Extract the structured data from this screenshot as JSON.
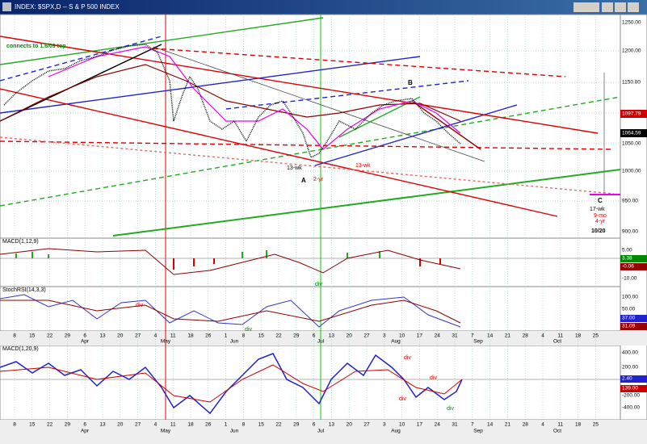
{
  "window_title": "INDEX: $SPX,D -- S & P 500 INDEX",
  "annotations": {
    "note": "connects to 1.6/09 top",
    "b": "B",
    "a": "A",
    "c": "C",
    "wk13_a": "13-wk",
    "yr2": "2-yr",
    "wk13_b": "13-wk",
    "wk17": "17-wk",
    "mo9": "9-mo",
    "yr4": "4-yr",
    "date": "10/20"
  },
  "price_axis": [
    "1250.00",
    "1200.00",
    "1150.00",
    "1050.00",
    "1000.00",
    "950.00",
    "900.00"
  ],
  "price_boxes": [
    "1097.79",
    "1064.59"
  ],
  "panels": [
    {
      "label": "MACD(1,12,9)",
      "axis": [
        "5.00",
        "-10.00"
      ],
      "boxes": [
        "3.38",
        "-0.06"
      ]
    },
    {
      "label": "StochRSI(14,3,3)",
      "axis": [
        "100.00",
        "50.00"
      ],
      "boxes": [
        "37.00",
        "31.09"
      ]
    },
    {
      "label": "MACD(1,20,9)",
      "axis": [
        "400.00",
        "200.00",
        "-200.00",
        "-400.00"
      ],
      "boxes": [
        "2.40",
        "139.00"
      ]
    }
  ],
  "divs": [
    "div",
    "div",
    "div",
    "div",
    "div",
    "div",
    "div"
  ],
  "dates": [
    "8",
    "15",
    "22",
    "29",
    "6",
    "13",
    "20",
    "27",
    "4",
    "11",
    "18",
    "26",
    "1",
    "8",
    "15",
    "22",
    "29",
    "6",
    "13",
    "20",
    "27",
    "3",
    "10",
    "17",
    "24",
    "31",
    "7",
    "14",
    "21",
    "28",
    "4",
    "11",
    "18",
    "25"
  ],
  "months": [
    "Apr",
    "May",
    "Jun",
    "Jul",
    "Aug",
    "Sep",
    "Oct"
  ]
}
